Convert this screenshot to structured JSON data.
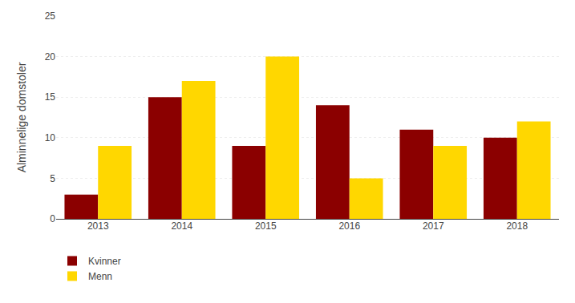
{
  "chart_data": {
    "type": "bar",
    "ylabel": "Alminnelige domstoler",
    "categories": [
      "2013",
      "2014",
      "2015",
      "2016",
      "2017",
      "2018"
    ],
    "series": [
      {
        "name": "Kvinner",
        "color": "#8B0000",
        "values": [
          3,
          15,
          9,
          14,
          11,
          10
        ]
      },
      {
        "name": "Menn",
        "color": "#FFD700",
        "values": [
          9,
          17,
          20,
          5,
          9,
          12
        ]
      }
    ],
    "ylim": [
      0,
      25
    ],
    "yticks": [
      0,
      5,
      10,
      15,
      20,
      25
    ],
    "grid": true,
    "legend": "bottom left"
  }
}
